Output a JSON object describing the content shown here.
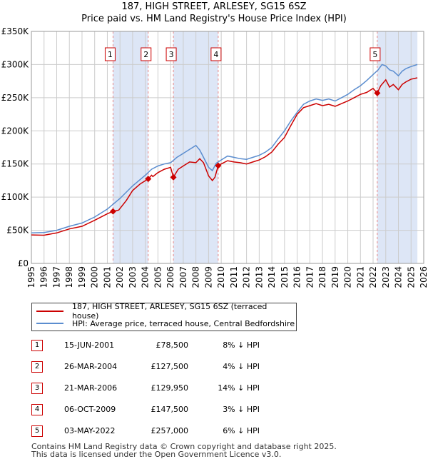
{
  "title_line1": "187, HIGH STREET, ARLESEY, SG15 6SZ",
  "title_line2": "Price paid vs. HM Land Registry's House Price Index (HPI)",
  "colors": {
    "price": "#cc0000",
    "hpi": "#5b8dcf",
    "band": "#dde6f6",
    "vline": "#e88888",
    "grid": "#cccccc"
  },
  "chart_data": {
    "type": "line",
    "title": "Price paid vs. HM Land Registry's House Price Index (HPI)",
    "xlabel": "",
    "ylabel": "",
    "xlim": [
      1995,
      2026
    ],
    "ylim": [
      0,
      350000
    ],
    "x_ticks": [
      1995,
      1996,
      1997,
      1998,
      1999,
      2000,
      2001,
      2002,
      2003,
      2004,
      2005,
      2006,
      2007,
      2008,
      2009,
      2010,
      2011,
      2012,
      2013,
      2014,
      2015,
      2016,
      2017,
      2018,
      2019,
      2020,
      2021,
      2022,
      2023,
      2024,
      2025,
      2026
    ],
    "y_ticks": [
      0,
      50000,
      100000,
      150000,
      200000,
      250000,
      300000,
      350000
    ],
    "y_tick_labels": [
      "£0",
      "£50K",
      "£100K",
      "£150K",
      "£200K",
      "£250K",
      "£300K",
      "£350K"
    ],
    "shaded_ranges": [
      [
        2001.45,
        2004.23
      ],
      [
        2006.22,
        2009.76
      ],
      [
        2022.33,
        2025.5
      ]
    ],
    "series": [
      {
        "name": "187, HIGH STREET, ARLESEY, SG15 6SZ (terraced house)",
        "x": [
          1995.0,
          1996.0,
          1997.0,
          1998.0,
          1999.0,
          2000.0,
          2001.0,
          2001.45,
          2001.9,
          2002.5,
          2003.0,
          2003.6,
          2004.23,
          2004.5,
          2004.6,
          2005.0,
          2005.5,
          2006.0,
          2006.22,
          2006.6,
          2007.0,
          2007.5,
          2008.0,
          2008.3,
          2008.6,
          2009.0,
          2009.3,
          2009.5,
          2009.76,
          2010.0,
          2010.5,
          2011.0,
          2011.5,
          2012.0,
          2012.5,
          2013.0,
          2013.5,
          2014.0,
          2014.5,
          2015.0,
          2015.5,
          2016.0,
          2016.5,
          2017.0,
          2017.5,
          2018.0,
          2018.5,
          2019.0,
          2019.5,
          2020.0,
          2020.5,
          2021.0,
          2021.5,
          2022.0,
          2022.33,
          2022.6,
          2023.0,
          2023.3,
          2023.6,
          2024.0,
          2024.3,
          2024.6,
          2025.0,
          2025.5
        ],
        "y": [
          43000,
          42500,
          46000,
          52000,
          56000,
          65000,
          75000,
          78500,
          80500,
          95000,
          110000,
          120000,
          127500,
          133000,
          131000,
          137000,
          142000,
          145000,
          129950,
          142000,
          147000,
          153000,
          152000,
          158000,
          152000,
          132000,
          125000,
          130000,
          147500,
          150000,
          155000,
          153000,
          152000,
          150000,
          153000,
          156000,
          161000,
          168000,
          180000,
          190000,
          208000,
          225000,
          235000,
          238000,
          241000,
          238000,
          240000,
          237000,
          241000,
          245000,
          250000,
          255000,
          258000,
          264000,
          257000,
          268000,
          277000,
          266000,
          270000,
          262000,
          270000,
          274000,
          278000,
          280000
        ]
      },
      {
        "name": "HPI: Average price, terraced house, Central Bedfordshire",
        "x": [
          1995.0,
          1996.0,
          1997.0,
          1998.0,
          1999.0,
          2000.0,
          2001.0,
          2002.0,
          2003.0,
          2004.0,
          2004.5,
          2005.0,
          2005.5,
          2006.0,
          2006.5,
          2007.0,
          2007.5,
          2008.0,
          2008.3,
          2008.6,
          2009.0,
          2009.3,
          2009.6,
          2010.0,
          2010.5,
          2011.0,
          2011.5,
          2012.0,
          2012.5,
          2013.0,
          2013.5,
          2014.0,
          2014.5,
          2015.0,
          2015.5,
          2016.0,
          2016.5,
          2017.0,
          2017.5,
          2018.0,
          2018.5,
          2019.0,
          2019.5,
          2020.0,
          2020.5,
          2021.0,
          2021.5,
          2022.0,
          2022.4,
          2022.7,
          2023.0,
          2023.3,
          2023.6,
          2024.0,
          2024.3,
          2024.6,
          2025.0,
          2025.5
        ],
        "y": [
          46000,
          46500,
          50000,
          56000,
          61000,
          70000,
          82000,
          98000,
          117000,
          133000,
          142000,
          147000,
          150000,
          152000,
          160000,
          166000,
          172000,
          178000,
          171000,
          160000,
          145000,
          140000,
          151000,
          156000,
          162000,
          160000,
          158000,
          157000,
          160000,
          163000,
          168000,
          175000,
          188000,
          200000,
          215000,
          228000,
          240000,
          245000,
          248000,
          246000,
          248000,
          245000,
          250000,
          255000,
          262000,
          268000,
          276000,
          285000,
          292000,
          300000,
          298000,
          292000,
          290000,
          283000,
          290000,
          294000,
          297000,
          300000
        ]
      }
    ],
    "sales": [
      {
        "label": "1",
        "x": 2001.45,
        "y": 78500
      },
      {
        "label": "2",
        "x": 2004.23,
        "y": 127500
      },
      {
        "label": "3",
        "x": 2006.22,
        "y": 129950
      },
      {
        "label": "4",
        "x": 2009.76,
        "y": 147500
      },
      {
        "label": "5",
        "x": 2022.33,
        "y": 257000
      }
    ]
  },
  "legend": {
    "price_label": "187, HIGH STREET, ARLESEY, SG15 6SZ (terraced house)",
    "hpi_label": "HPI: Average price, terraced house, Central Bedfordshire"
  },
  "transactions": [
    {
      "num": "1",
      "date": "15-JUN-2001",
      "price": "£78,500",
      "hpi": "8% ↓ HPI"
    },
    {
      "num": "2",
      "date": "26-MAR-2004",
      "price": "£127,500",
      "hpi": "4% ↓ HPI"
    },
    {
      "num": "3",
      "date": "21-MAR-2006",
      "price": "£129,950",
      "hpi": "14% ↓ HPI"
    },
    {
      "num": "4",
      "date": "06-OCT-2009",
      "price": "£147,500",
      "hpi": "3% ↓ HPI"
    },
    {
      "num": "5",
      "date": "03-MAY-2022",
      "price": "£257,000",
      "hpi": "6% ↓ HPI"
    }
  ],
  "footer": {
    "line1": "Contains HM Land Registry data © Crown copyright and database right 2025.",
    "line2": "This data is licensed under the Open Government Licence v3.0."
  }
}
